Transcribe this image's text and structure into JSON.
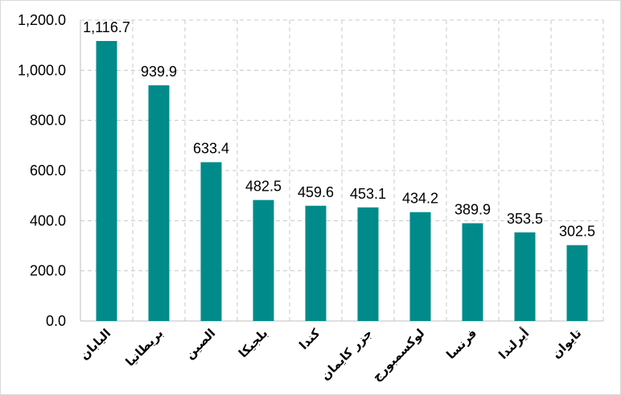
{
  "chart_data": {
    "type": "bar",
    "categories": [
      "اليابان",
      "بريطانيا",
      "الصين",
      "بلجيكا",
      "كندا",
      "جزر كايمان",
      "لوكسمبورج",
      "فرنسا",
      "أيرلندا",
      "تايوان"
    ],
    "values": [
      1116.7,
      939.9,
      633.4,
      482.5,
      459.6,
      453.1,
      434.2,
      389.9,
      353.5,
      302.5
    ],
    "data_labels": [
      "1,116.7",
      "939.9",
      "633.4",
      "482.5",
      "459.6",
      "453.1",
      "434.2",
      "389.9",
      "353.5",
      "302.5"
    ],
    "y_ticks": [
      "0.0",
      "200.0",
      "400.0",
      "600.0",
      "800.0",
      "1,000.0",
      "1,200.0"
    ],
    "ylim": [
      0,
      1200
    ],
    "bar_color": "#008b8b",
    "grid": true,
    "grid_style": "dashed",
    "legend": "none",
    "title": "",
    "xlabel": "",
    "ylabel": ""
  }
}
